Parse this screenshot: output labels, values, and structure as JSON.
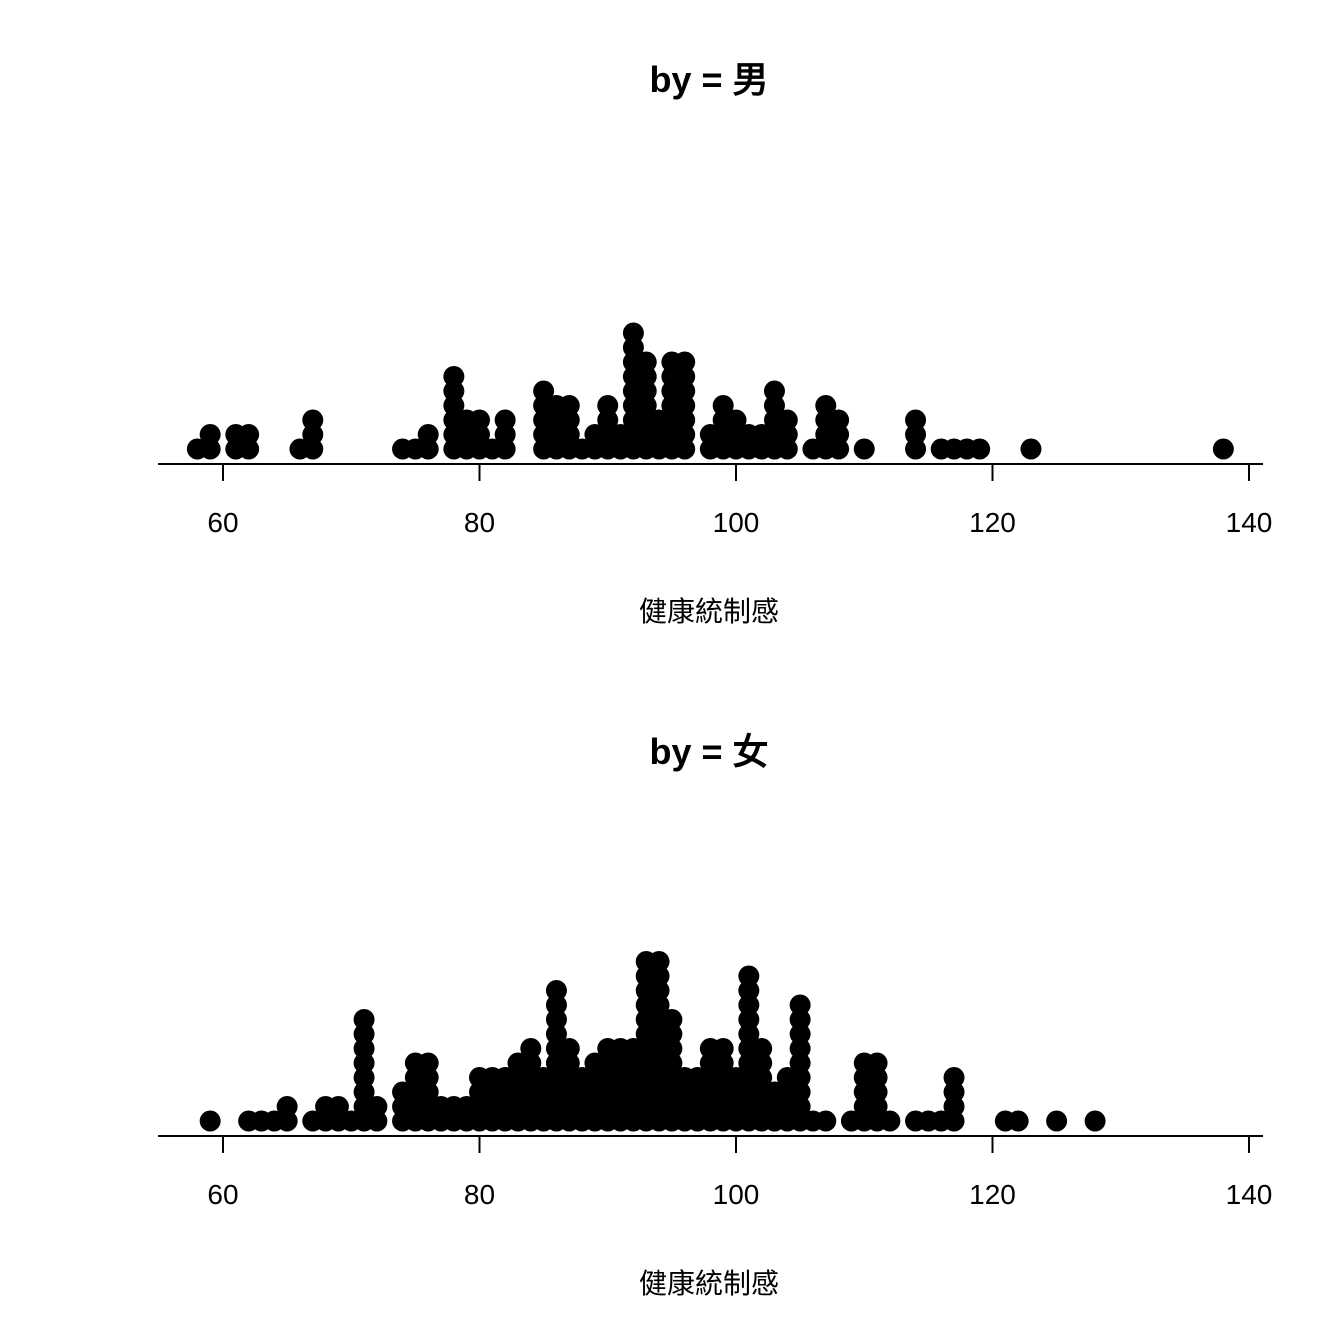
{
  "chart_data": [
    {
      "type": "dotplot",
      "title": "by = 男",
      "xlabel": "健康統制感",
      "xlim": [
        55,
        141
      ],
      "xticks": [
        60,
        80,
        100,
        120,
        140
      ],
      "stacks": [
        {
          "x": 58,
          "n": 1
        },
        {
          "x": 59,
          "n": 2
        },
        {
          "x": 61,
          "n": 2
        },
        {
          "x": 62,
          "n": 2
        },
        {
          "x": 66,
          "n": 1
        },
        {
          "x": 67,
          "n": 3
        },
        {
          "x": 74,
          "n": 1
        },
        {
          "x": 75,
          "n": 1
        },
        {
          "x": 76,
          "n": 2
        },
        {
          "x": 78,
          "n": 6
        },
        {
          "x": 79,
          "n": 3
        },
        {
          "x": 80,
          "n": 3
        },
        {
          "x": 81,
          "n": 1
        },
        {
          "x": 82,
          "n": 3
        },
        {
          "x": 85,
          "n": 5
        },
        {
          "x": 86,
          "n": 4
        },
        {
          "x": 87,
          "n": 4
        },
        {
          "x": 88,
          "n": 1
        },
        {
          "x": 89,
          "n": 2
        },
        {
          "x": 90,
          "n": 4
        },
        {
          "x": 91,
          "n": 2
        },
        {
          "x": 92,
          "n": 9
        },
        {
          "x": 93,
          "n": 7
        },
        {
          "x": 94,
          "n": 3
        },
        {
          "x": 95,
          "n": 7
        },
        {
          "x": 96,
          "n": 7
        },
        {
          "x": 98,
          "n": 2
        },
        {
          "x": 99,
          "n": 4
        },
        {
          "x": 100,
          "n": 3
        },
        {
          "x": 101,
          "n": 2
        },
        {
          "x": 102,
          "n": 2
        },
        {
          "x": 103,
          "n": 5
        },
        {
          "x": 104,
          "n": 3
        },
        {
          "x": 106,
          "n": 1
        },
        {
          "x": 107,
          "n": 4
        },
        {
          "x": 108,
          "n": 3
        },
        {
          "x": 110,
          "n": 1
        },
        {
          "x": 114,
          "n": 3
        },
        {
          "x": 116,
          "n": 1
        },
        {
          "x": 117,
          "n": 1
        },
        {
          "x": 118,
          "n": 1
        },
        {
          "x": 119,
          "n": 1
        },
        {
          "x": 123,
          "n": 1
        },
        {
          "x": 138,
          "n": 1
        }
      ]
    },
    {
      "type": "dotplot",
      "title": "by = 女",
      "xlabel": "健康統制感",
      "xlim": [
        55,
        141
      ],
      "xticks": [
        60,
        80,
        100,
        120,
        140
      ],
      "stacks": [
        {
          "x": 59,
          "n": 1
        },
        {
          "x": 62,
          "n": 1
        },
        {
          "x": 63,
          "n": 1
        },
        {
          "x": 64,
          "n": 1
        },
        {
          "x": 65,
          "n": 2
        },
        {
          "x": 67,
          "n": 1
        },
        {
          "x": 68,
          "n": 2
        },
        {
          "x": 69,
          "n": 2
        },
        {
          "x": 70,
          "n": 1
        },
        {
          "x": 71,
          "n": 8
        },
        {
          "x": 72,
          "n": 2
        },
        {
          "x": 74,
          "n": 3
        },
        {
          "x": 75,
          "n": 5
        },
        {
          "x": 76,
          "n": 5
        },
        {
          "x": 77,
          "n": 2
        },
        {
          "x": 78,
          "n": 2
        },
        {
          "x": 79,
          "n": 2
        },
        {
          "x": 80,
          "n": 4
        },
        {
          "x": 81,
          "n": 4
        },
        {
          "x": 82,
          "n": 4
        },
        {
          "x": 83,
          "n": 5
        },
        {
          "x": 84,
          "n": 6
        },
        {
          "x": 85,
          "n": 4
        },
        {
          "x": 86,
          "n": 10
        },
        {
          "x": 87,
          "n": 6
        },
        {
          "x": 88,
          "n": 4
        },
        {
          "x": 89,
          "n": 5
        },
        {
          "x": 90,
          "n": 6
        },
        {
          "x": 91,
          "n": 6
        },
        {
          "x": 92,
          "n": 6
        },
        {
          "x": 93,
          "n": 12
        },
        {
          "x": 94,
          "n": 12
        },
        {
          "x": 95,
          "n": 8
        },
        {
          "x": 96,
          "n": 4
        },
        {
          "x": 97,
          "n": 4
        },
        {
          "x": 98,
          "n": 6
        },
        {
          "x": 99,
          "n": 6
        },
        {
          "x": 100,
          "n": 4
        },
        {
          "x": 101,
          "n": 11
        },
        {
          "x": 102,
          "n": 6
        },
        {
          "x": 103,
          "n": 3
        },
        {
          "x": 104,
          "n": 4
        },
        {
          "x": 105,
          "n": 9
        },
        {
          "x": 106,
          "n": 1
        },
        {
          "x": 107,
          "n": 1
        },
        {
          "x": 109,
          "n": 1
        },
        {
          "x": 110,
          "n": 5
        },
        {
          "x": 111,
          "n": 5
        },
        {
          "x": 112,
          "n": 1
        },
        {
          "x": 114,
          "n": 1
        },
        {
          "x": 115,
          "n": 1
        },
        {
          "x": 116,
          "n": 1
        },
        {
          "x": 117,
          "n": 4
        },
        {
          "x": 121,
          "n": 1
        },
        {
          "x": 122,
          "n": 1
        },
        {
          "x": 125,
          "n": 1
        },
        {
          "x": 128,
          "n": 1
        }
      ]
    }
  ]
}
